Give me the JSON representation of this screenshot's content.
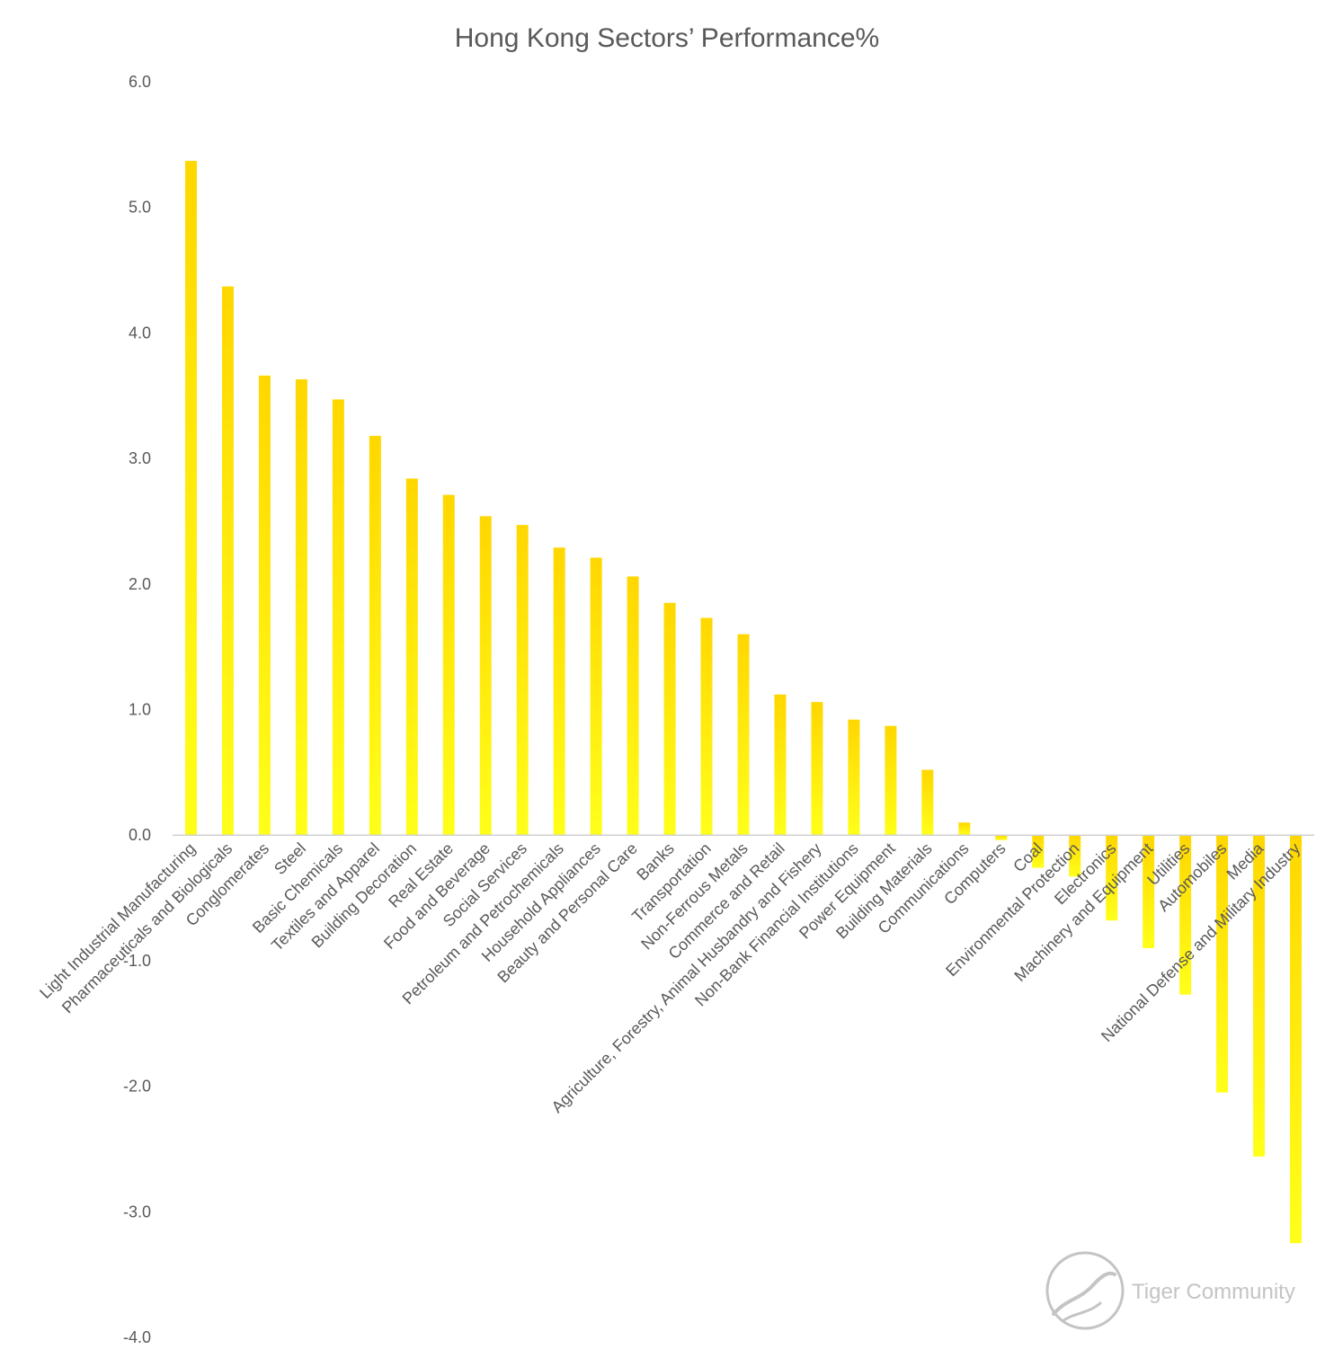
{
  "chart_data": {
    "type": "bar",
    "title": "Hong Kong Sectors’ Performance%",
    "xlabel": "",
    "ylabel": "",
    "ylim": [
      -4.0,
      6.0
    ],
    "yticks": [
      "6.0",
      "5.0",
      "4.0",
      "3.0",
      "2.0",
      "1.0",
      "0.0",
      "-1.0",
      "-2.0",
      "-3.0",
      "-4.0"
    ],
    "grid": false,
    "legend": "none",
    "bar_color_top": "#FFD700",
    "bar_color_bottom": "#FFFF1A",
    "categories": [
      "Light Industrial Manufacturing",
      "Pharmaceuticals and Biologicals",
      "Conglomerates",
      "Steel",
      "Basic Chemicals",
      "Textiles and Apparel",
      "Building Decoration",
      "Real Estate",
      "Food and Beverage",
      "Social Services",
      "Petroleum and Petrochemicals",
      "Household Appliances",
      "Beauty and Personal Care",
      "Banks",
      "Transportation",
      "Non-Ferrous Metals",
      "Commerce and Retail",
      "Agriculture, Forestry, Animal Husbandry and Fishery",
      "Non-Bank Financial Institutions",
      "Power Equipment",
      "Building Materials",
      "Communications",
      "Computers",
      "Coal",
      "Environmental Protection",
      "Electronics",
      "Machinery and Equipment",
      "Utilities",
      "Automobiles",
      "Media",
      "National Defense and Military Industry"
    ],
    "values": [
      5.37,
      4.37,
      3.66,
      3.63,
      3.47,
      3.18,
      2.84,
      2.71,
      2.54,
      2.47,
      2.29,
      2.21,
      2.06,
      1.85,
      1.73,
      1.6,
      1.12,
      1.06,
      0.92,
      0.87,
      0.52,
      0.1,
      -0.04,
      -0.26,
      -0.33,
      -0.68,
      -0.9,
      -1.27,
      -2.05,
      -2.56,
      -3.25
    ]
  },
  "watermark": {
    "text": "Tiger Community",
    "color": "#c4c4c4"
  }
}
